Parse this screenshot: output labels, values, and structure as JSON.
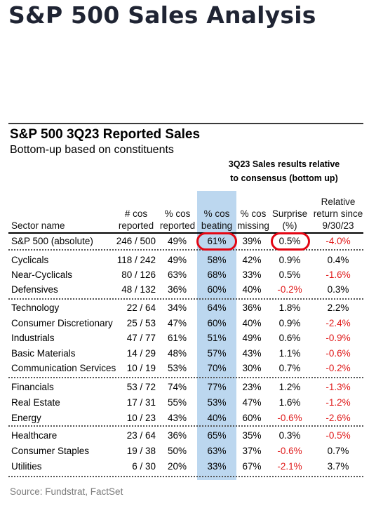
{
  "title": "S&P 500 Sales Analysis",
  "table_title": "S&P 500 3Q23 Reported Sales",
  "table_subtitle": "Bottom-up based on constituents",
  "group_header": {
    "line1": "3Q23 Sales results relative",
    "line2": "to consensus (bottom up)"
  },
  "columns": {
    "sector": "Sector name",
    "reported": [
      "# cos",
      "reported"
    ],
    "pct_reported": [
      "% cos",
      "reported"
    ],
    "pct_beating": [
      "% cos",
      "beating"
    ],
    "pct_missing": [
      "% cos",
      "missing"
    ],
    "surprise": [
      "Surprise",
      "(%)"
    ],
    "relative": [
      "Relative",
      "return since",
      "9/30/23"
    ]
  },
  "rows": [
    {
      "name": "S&P 500 (absolute)",
      "reported": "246 / 500",
      "pct_reported": "49%",
      "beating": "61%",
      "missing": "39%",
      "surprise": "0.5%",
      "relative": "-4.0%",
      "surprise_neg": false,
      "relative_neg": true
    },
    {
      "name": "Cyclicals",
      "reported": "118 / 242",
      "pct_reported": "49%",
      "beating": "58%",
      "missing": "42%",
      "surprise": "0.9%",
      "relative": "0.4%",
      "surprise_neg": false,
      "relative_neg": false
    },
    {
      "name": "Near-Cyclicals",
      "reported": "80 / 126",
      "pct_reported": "63%",
      "beating": "68%",
      "missing": "33%",
      "surprise": "0.5%",
      "relative": "-1.6%",
      "surprise_neg": false,
      "relative_neg": true
    },
    {
      "name": "Defensives",
      "reported": "48 / 132",
      "pct_reported": "36%",
      "beating": "60%",
      "missing": "40%",
      "surprise": "-0.2%",
      "relative": "0.3%",
      "surprise_neg": true,
      "relative_neg": false
    },
    {
      "name": "Technology",
      "reported": "22 / 64",
      "pct_reported": "34%",
      "beating": "64%",
      "missing": "36%",
      "surprise": "1.8%",
      "relative": "2.2%",
      "surprise_neg": false,
      "relative_neg": false
    },
    {
      "name": "Consumer Discretionary",
      "reported": "25 / 53",
      "pct_reported": "47%",
      "beating": "60%",
      "missing": "40%",
      "surprise": "0.9%",
      "relative": "-2.4%",
      "surprise_neg": false,
      "relative_neg": true
    },
    {
      "name": "Industrials",
      "reported": "47 / 77",
      "pct_reported": "61%",
      "beating": "51%",
      "missing": "49%",
      "surprise": "0.6%",
      "relative": "-0.9%",
      "surprise_neg": false,
      "relative_neg": true
    },
    {
      "name": "Basic Materials",
      "reported": "14 / 29",
      "pct_reported": "48%",
      "beating": "57%",
      "missing": "43%",
      "surprise": "1.1%",
      "relative": "-0.6%",
      "surprise_neg": false,
      "relative_neg": true
    },
    {
      "name": "Communication Services",
      "reported": "10 / 19",
      "pct_reported": "53%",
      "beating": "70%",
      "missing": "30%",
      "surprise": "0.7%",
      "relative": "-0.2%",
      "surprise_neg": false,
      "relative_neg": true
    },
    {
      "name": "Financials",
      "reported": "53 / 72",
      "pct_reported": "74%",
      "beating": "77%",
      "missing": "23%",
      "surprise": "1.2%",
      "relative": "-1.3%",
      "surprise_neg": false,
      "relative_neg": true
    },
    {
      "name": "Real Estate",
      "reported": "17 / 31",
      "pct_reported": "55%",
      "beating": "53%",
      "missing": "47%",
      "surprise": "1.6%",
      "relative": "-1.2%",
      "surprise_neg": false,
      "relative_neg": true
    },
    {
      "name": "Energy",
      "reported": "10 / 23",
      "pct_reported": "43%",
      "beating": "40%",
      "missing": "60%",
      "surprise": "-0.6%",
      "relative": "-2.6%",
      "surprise_neg": true,
      "relative_neg": true
    },
    {
      "name": "Healthcare",
      "reported": "23 / 64",
      "pct_reported": "36%",
      "beating": "65%",
      "missing": "35%",
      "surprise": "0.3%",
      "relative": "-0.5%",
      "surprise_neg": false,
      "relative_neg": true
    },
    {
      "name": "Consumer Staples",
      "reported": "19 / 38",
      "pct_reported": "50%",
      "beating": "63%",
      "missing": "37%",
      "surprise": "-0.6%",
      "relative": "0.7%",
      "surprise_neg": true,
      "relative_neg": false
    },
    {
      "name": "Utilities",
      "reported": "6 / 30",
      "pct_reported": "20%",
      "beating": "33%",
      "missing": "67%",
      "surprise": "-2.1%",
      "relative": "3.7%",
      "surprise_neg": true,
      "relative_neg": false
    }
  ],
  "source": "Source: Fundstrat, FactSet",
  "colors": {
    "highlight": "#bcd7ef",
    "negative": "#e01b1b",
    "circle": "#e30613"
  }
}
